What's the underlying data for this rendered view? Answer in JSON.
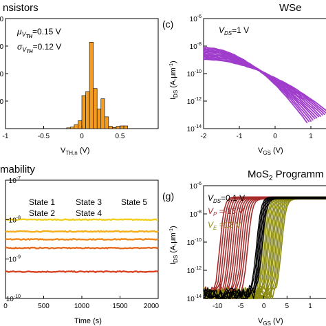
{
  "panels": {
    "top_left": {
      "title": "nsistors",
      "xlabel_main": "V",
      "xlabel_sub": "TH,n",
      "xlabel_unit": " (V)",
      "annotation_mu_symbol": "μ",
      "annotation_mu_sub": "V",
      "annotation_mu_subsub": "TH",
      "annotation_mu_value": "=0.15 V",
      "annotation_sigma_symbol": "σ",
      "annotation_sigma_sub": "V",
      "annotation_sigma_subsub": "TH",
      "annotation_sigma_value": "=0.12 V",
      "bar_color": "#f39c1f"
    },
    "top_right": {
      "letter": "(c)",
      "title": "WSe",
      "ylabel_main": "I",
      "ylabel_sub": "DS",
      "ylabel_unit": " (A.μm",
      "ylabel_exp": "-1",
      "ylabel_close": ")",
      "xlabel_main": "V",
      "xlabel_sub": "GS",
      "xlabel_unit": " (V)",
      "annotation_main": "V",
      "annotation_sub": "DS",
      "annotation_value": "=1 V",
      "curve_color": "#a03ccc"
    },
    "bottom_left": {
      "title": "mability",
      "xlabel": "Time (s)",
      "states": [
        {
          "label": "State 1",
          "color": "#d9431f"
        },
        {
          "label": "State 2",
          "color": "#e86a1c"
        },
        {
          "label": "State 3",
          "color": "#f08a1a"
        },
        {
          "label": "State 4",
          "color": "#f3ae1a"
        },
        {
          "label": "State 5",
          "color": "#f2cf1c"
        }
      ]
    },
    "bottom_right": {
      "letter": "(g)",
      "title_main": "MoS",
      "title_sub": "2",
      "title_rest": " Programm",
      "ylabel_main": "I",
      "ylabel_sub": "DS",
      "ylabel_unit": " (A.μm",
      "ylabel_exp": "-1",
      "ylabel_close": ")",
      "xlabel_main": "V",
      "xlabel_sub": "GS",
      "xlabel_unit": " (V)",
      "annotations": [
        {
          "main": "V",
          "sub": "DS",
          "value": "=0.1 V",
          "color": "#000000"
        },
        {
          "main": "V",
          "sub": "P",
          "value": " =-13 V",
          "color": "#a62a2a"
        },
        {
          "main": "V",
          "sub": "E",
          "value": " =13 V",
          "color": "#8c8c12"
        }
      ]
    }
  },
  "chart_data": [
    {
      "type": "bar",
      "panel": "top_left",
      "xlim": [
        -1,
        1
      ],
      "x_ticks": [
        "-1",
        "-0.5",
        "0",
        "0.5"
      ],
      "y_ticks": [
        "0",
        "0",
        "0",
        "0"
      ],
      "bin_centers": [
        -0.175,
        -0.125,
        -0.075,
        -0.025,
        0.025,
        0.075,
        0.125,
        0.175,
        0.225,
        0.275,
        0.325,
        0.375,
        0.425,
        0.475,
        0.525,
        0.575
      ],
      "values": [
        0.1,
        0.2,
        0.5,
        1.0,
        4.2,
        4.7,
        11.0,
        5.1,
        2.5,
        3.8,
        1.5,
        0.3,
        0.15,
        0.3,
        0.35,
        0.35
      ],
      "ylim": [
        0,
        14
      ]
    },
    {
      "type": "line",
      "panel": "top_right",
      "xlim": [
        -2,
        1.5
      ],
      "x_ticks": [
        "-2",
        "-1",
        "0",
        "1"
      ],
      "y_scale": "log",
      "ylim_exp": [
        -14,
        -6
      ],
      "y_ticks_exp": [
        "-6",
        "-8",
        "-10",
        "-12",
        "-14"
      ],
      "series_count": 12
    },
    {
      "type": "line",
      "panel": "bottom_left",
      "xlim": [
        0,
        2000
      ],
      "x_ticks": [
        "0",
        "500",
        "1000",
        "1500",
        "2000"
      ],
      "y_scale": "log",
      "ylim_exp": [
        -10,
        -7
      ],
      "y_ticks_exp": [
        "-7",
        "-8",
        "-9",
        "-10"
      ],
      "series": [
        {
          "name": "State 1",
          "value_exp": -9.32
        },
        {
          "name": "State 2",
          "value_exp": -8.72
        },
        {
          "name": "State 3",
          "value_exp": -8.5
        },
        {
          "name": "State 4",
          "value_exp": -8.3
        },
        {
          "name": "State 5",
          "value_exp": -8.0
        }
      ]
    },
    {
      "type": "line",
      "panel": "bottom_right",
      "xlim": [
        -13,
        14
      ],
      "x_ticks": [
        "-10",
        "-5",
        "0",
        "5",
        "1"
      ],
      "y_scale": "log",
      "ylim_exp": [
        -14,
        -6
      ],
      "y_ticks_exp": [
        "-6",
        "-8",
        "-10",
        "-12",
        "-14"
      ],
      "series": [
        {
          "name": "V_DS=0.1 V",
          "color": "#000000"
        },
        {
          "name": "V_P=-13 V",
          "color": "#a62a2a"
        },
        {
          "name": "V_E=13 V",
          "color": "#8c8c12"
        }
      ]
    }
  ]
}
